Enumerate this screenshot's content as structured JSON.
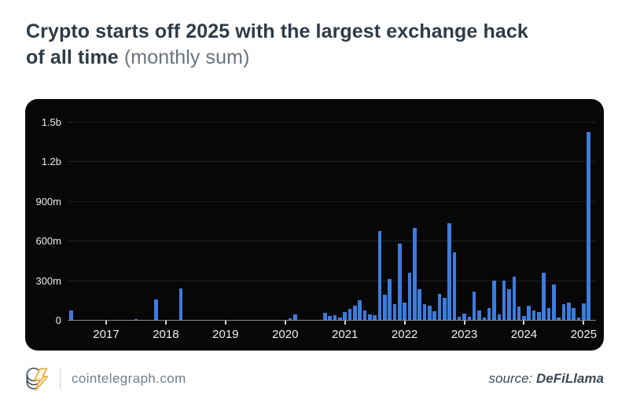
{
  "title": {
    "line1_bold": "Crypto starts off 2025 with the largest exchange hack",
    "line2_bold": "of all time",
    "suffix": " (monthly sum)"
  },
  "footer": {
    "site": "cointelegraph.com",
    "logo": "cointelegraph-coin-lightning-logo",
    "source_label": "source:",
    "source_value": "DeFiLlama"
  },
  "chart_data": {
    "type": "bar",
    "title": "Crypto hack losses, monthly sum",
    "unit": "USD",
    "value_unit": "millions",
    "x_range": [
      "2016-06",
      "2025-02"
    ],
    "ylim": [
      0,
      1500
    ],
    "grid": true,
    "legend": "none",
    "colors": {
      "bar": "#3c7cde",
      "panel_bg": "#070707",
      "gridline": "#202020",
      "axis_line": "#8c8c8c",
      "tick": "#cfcfcf"
    },
    "y_ticks": [
      {
        "label": "1.5b",
        "value": 1500
      },
      {
        "label": "1.2b",
        "value": 1200
      },
      {
        "label": "900m",
        "value": 900
      },
      {
        "label": "600m",
        "value": 600
      },
      {
        "label": "300m",
        "value": 300
      },
      {
        "label": "0",
        "value": 0
      }
    ],
    "year_ticks": [
      2017,
      2018,
      2019,
      2020,
      2021,
      2022,
      2023,
      2024,
      2025
    ],
    "points": [
      {
        "month": "2016-06",
        "value": 70
      },
      {
        "month": "2017-07",
        "value": 8
      },
      {
        "month": "2017-11",
        "value": 155
      },
      {
        "month": "2018-04",
        "value": 240
      },
      {
        "month": "2020-02",
        "value": 12
      },
      {
        "month": "2020-03",
        "value": 40
      },
      {
        "month": "2020-09",
        "value": 56
      },
      {
        "month": "2020-10",
        "value": 28
      },
      {
        "month": "2020-11",
        "value": 34
      },
      {
        "month": "2020-12",
        "value": 20
      },
      {
        "month": "2021-01",
        "value": 60
      },
      {
        "month": "2021-02",
        "value": 85
      },
      {
        "month": "2021-03",
        "value": 110
      },
      {
        "month": "2021-04",
        "value": 150
      },
      {
        "month": "2021-05",
        "value": 70
      },
      {
        "month": "2021-06",
        "value": 40
      },
      {
        "month": "2021-07",
        "value": 35
      },
      {
        "month": "2021-08",
        "value": 670
      },
      {
        "month": "2021-09",
        "value": 190
      },
      {
        "month": "2021-10",
        "value": 310
      },
      {
        "month": "2021-11",
        "value": 120
      },
      {
        "month": "2021-12",
        "value": 575
      },
      {
        "month": "2022-01",
        "value": 130
      },
      {
        "month": "2022-02",
        "value": 360
      },
      {
        "month": "2022-03",
        "value": 695
      },
      {
        "month": "2022-04",
        "value": 235
      },
      {
        "month": "2022-05",
        "value": 120
      },
      {
        "month": "2022-06",
        "value": 110
      },
      {
        "month": "2022-07",
        "value": 65
      },
      {
        "month": "2022-08",
        "value": 195
      },
      {
        "month": "2022-09",
        "value": 165
      },
      {
        "month": "2022-10",
        "value": 735
      },
      {
        "month": "2022-11",
        "value": 510
      },
      {
        "month": "2022-12",
        "value": 25
      },
      {
        "month": "2023-01",
        "value": 50
      },
      {
        "month": "2023-02",
        "value": 25
      },
      {
        "month": "2023-03",
        "value": 215
      },
      {
        "month": "2023-04",
        "value": 70
      },
      {
        "month": "2023-05",
        "value": 15
      },
      {
        "month": "2023-06",
        "value": 90
      },
      {
        "month": "2023-07",
        "value": 300
      },
      {
        "month": "2023-08",
        "value": 40
      },
      {
        "month": "2023-09",
        "value": 298
      },
      {
        "month": "2023-10",
        "value": 235
      },
      {
        "month": "2023-11",
        "value": 330
      },
      {
        "month": "2023-12",
        "value": 100
      },
      {
        "month": "2024-01",
        "value": 30
      },
      {
        "month": "2024-02",
        "value": 105
      },
      {
        "month": "2024-03",
        "value": 70
      },
      {
        "month": "2024-04",
        "value": 60
      },
      {
        "month": "2024-05",
        "value": 355
      },
      {
        "month": "2024-06",
        "value": 90
      },
      {
        "month": "2024-07",
        "value": 265
      },
      {
        "month": "2024-08",
        "value": 20
      },
      {
        "month": "2024-09",
        "value": 118
      },
      {
        "month": "2024-10",
        "value": 130
      },
      {
        "month": "2024-11",
        "value": 90
      },
      {
        "month": "2024-12",
        "value": 15
      },
      {
        "month": "2025-01",
        "value": 125
      },
      {
        "month": "2025-02",
        "value": 1420
      }
    ]
  }
}
